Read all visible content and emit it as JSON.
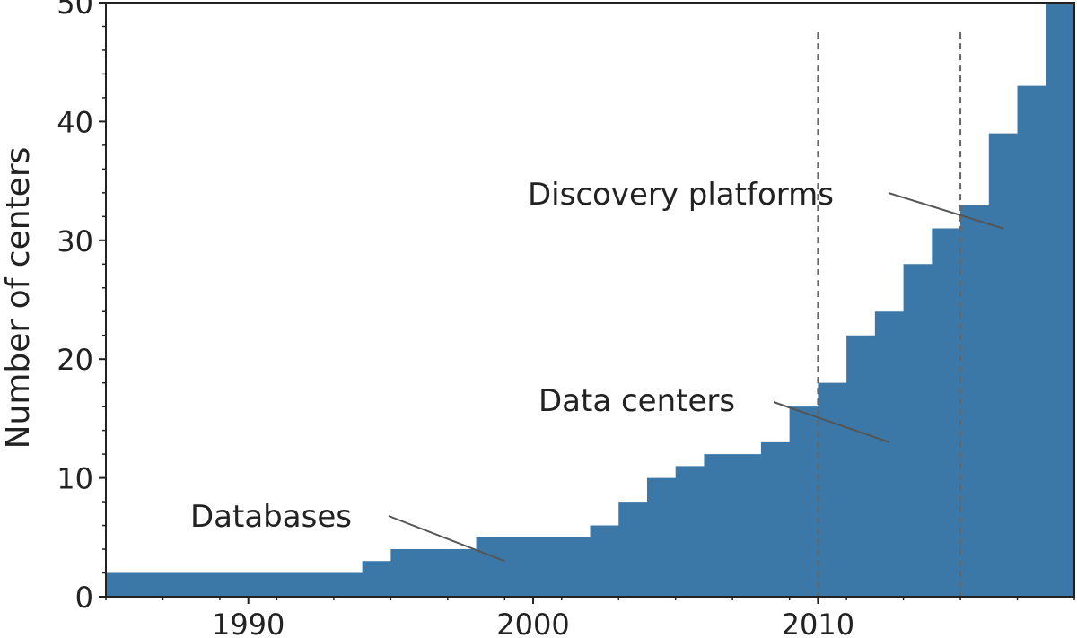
{
  "chart_data": {
    "type": "area",
    "step": "post",
    "title": "",
    "xlabel": "",
    "ylabel": "Number of centers",
    "xlim": [
      1985,
      2019
    ],
    "ylim": [
      0,
      50
    ],
    "xticks": [
      1990,
      2000,
      2010
    ],
    "yticks": [
      0,
      10,
      20,
      30,
      40,
      50
    ],
    "x": [
      1985,
      1994,
      1995,
      1998,
      2002,
      2003,
      2004,
      2005,
      2006,
      2008,
      2009,
      2010,
      2011,
      2012,
      2013,
      2014,
      2015,
      2016,
      2017,
      2018,
      2019
    ],
    "y": [
      2,
      3,
      4,
      5,
      6,
      8,
      10,
      11,
      12,
      13,
      16,
      18,
      22,
      24,
      28,
      31,
      33,
      39,
      43,
      50,
      50
    ],
    "fill_color": "#3b78a8",
    "vlines": [
      2010,
      2015
    ],
    "grid": false,
    "annotations": [
      {
        "text": "Databases",
        "x": 1999,
        "y": 3
      },
      {
        "text": "Data centers",
        "x": 2012.5,
        "y": 13
      },
      {
        "text": "Discovery platforms",
        "x": 2016.5,
        "y": 31
      }
    ]
  }
}
